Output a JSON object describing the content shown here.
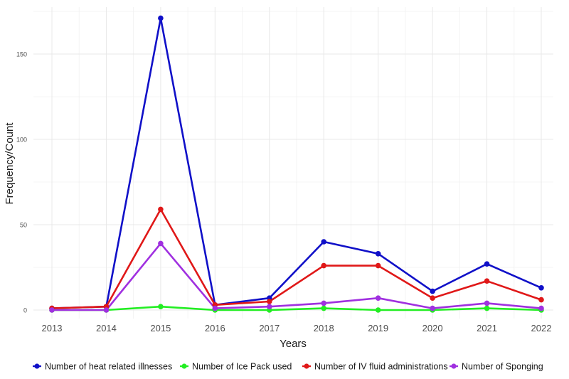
{
  "chart_data": {
    "type": "line",
    "title": "",
    "xlabel": "Years",
    "ylabel": "Frequency/Count",
    "categories": [
      "2013",
      "2014",
      "2015",
      "2016",
      "2017",
      "2018",
      "2019",
      "2020",
      "2021",
      "2022"
    ],
    "ylim": [
      0,
      175
    ],
    "yticks": [
      0,
      50,
      100,
      150
    ],
    "grid": true,
    "legend_position": "bottom",
    "series": [
      {
        "name": "Number of heat related illnesses",
        "color": "#1010c8",
        "values": [
          1,
          2,
          171,
          3,
          7,
          40,
          33,
          11,
          27,
          13
        ]
      },
      {
        "name": "Number of Ice Pack used",
        "color": "#22ee22",
        "values": [
          0,
          0,
          2,
          0,
          0,
          1,
          0,
          0,
          1,
          0
        ]
      },
      {
        "name": "Number of IV fluid administrations",
        "color": "#e01818",
        "values": [
          1,
          2,
          59,
          3,
          5,
          26,
          26,
          7,
          17,
          6
        ]
      },
      {
        "name": "Number of Sponging",
        "color": "#a030e0",
        "values": [
          0,
          0,
          39,
          1,
          2,
          4,
          7,
          1,
          4,
          1
        ]
      }
    ]
  }
}
